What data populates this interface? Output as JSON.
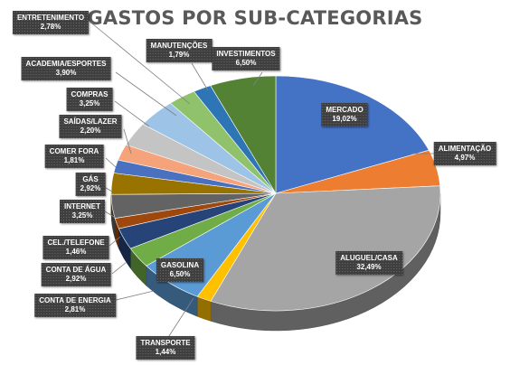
{
  "chart_data": {
    "type": "pie",
    "title": "GASTOS POR SUB-CATEGORIAS",
    "slices": [
      {
        "label": "MERCADO",
        "percent_text": "19,02%",
        "value": 19.02,
        "color": "#4472c4"
      },
      {
        "label": "ALIMENTAÇÃO",
        "percent_text": "4,97%",
        "value": 4.97,
        "color": "#ed7d31"
      },
      {
        "label": "ALUGUEL/CASA",
        "percent_text": "32,49%",
        "value": 32.49,
        "color": "#a5a5a5"
      },
      {
        "label": "TRANSPORTE",
        "percent_text": "1,44%",
        "value": 1.44,
        "color": "#ffc000"
      },
      {
        "label": "GASOLINA",
        "percent_text": "6,50%",
        "value": 6.5,
        "color": "#5b9bd5"
      },
      {
        "label": "CONTA DE ENERGIA",
        "percent_text": "2,81%",
        "value": 2.81,
        "color": "#70ad47"
      },
      {
        "label": "CONTA DE ÁGUA",
        "percent_text": "2,92%",
        "value": 2.92,
        "color": "#264478"
      },
      {
        "label": "CEL./TELEFONE",
        "percent_text": "1,46%",
        "value": 1.46,
        "color": "#9e480e"
      },
      {
        "label": "INTERNET",
        "percent_text": "3,25%",
        "value": 3.25,
        "color": "#636363"
      },
      {
        "label": "GÁS",
        "percent_text": "2,92%",
        "value": 2.92,
        "color": "#997300"
      },
      {
        "label": "COMER FORA",
        "percent_text": "1,81%",
        "value": 1.81,
        "color": "#4a70c0"
      },
      {
        "label": "SAÍDAS/LAZER",
        "percent_text": "2,20%",
        "value": 2.2,
        "color": "#f4a37a"
      },
      {
        "label": "COMPRAS",
        "percent_text": "3,25%",
        "value": 3.25,
        "color": "#c4c4c4"
      },
      {
        "label": "ACADEMIA/ESPORTES",
        "percent_text": "3,90%",
        "value": 3.9,
        "color": "#9dc3e6"
      },
      {
        "label": "ENTRETENIMENTO",
        "percent_text": "2,78%",
        "value": 2.78,
        "color": "#8fc26a"
      },
      {
        "label": "MANUTENÇÕES",
        "percent_text": "1,79%",
        "value": 1.79,
        "color": "#2e75b6"
      },
      {
        "label": "INVESTIMENTOS",
        "percent_text": "6,50%",
        "value": 6.5,
        "color": "#548235"
      }
    ],
    "legend": "none",
    "style": "3d-pie"
  }
}
